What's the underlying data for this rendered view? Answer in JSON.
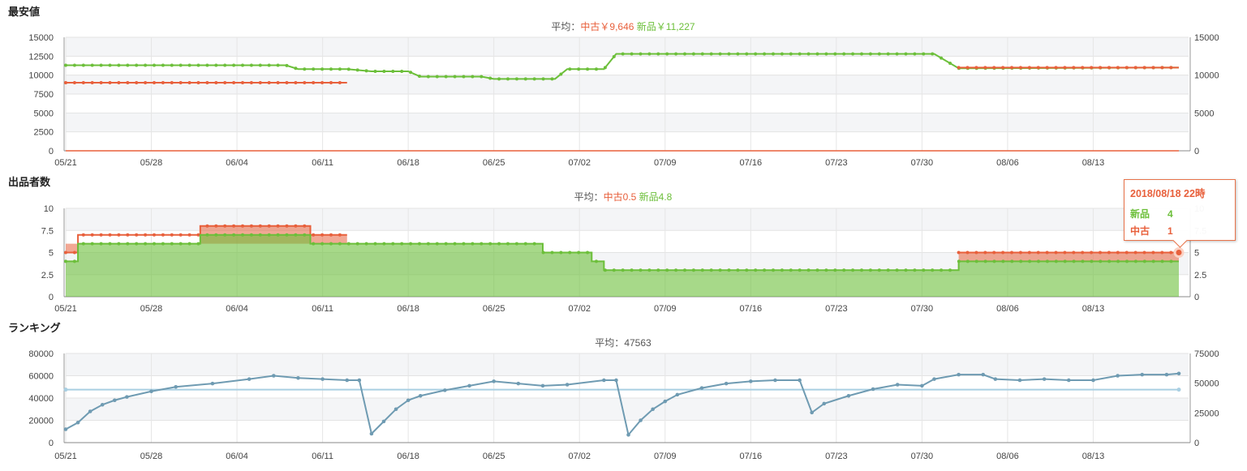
{
  "colors": {
    "used": "#e8603c",
    "new": "#6cbf3a",
    "rank": "#6f9bb2",
    "avg_line": "#a9cfe2"
  },
  "date_ticks": [
    "05/21",
    "05/28",
    "06/04",
    "06/11",
    "06/18",
    "06/25",
    "07/02",
    "07/09",
    "07/16",
    "07/23",
    "07/30",
    "08/06",
    "08/13"
  ],
  "chart_data": [
    {
      "type": "line",
      "title": "最安値",
      "subtitle_prefix": "平均：",
      "subtitle_used": "中古￥9,646",
      "subtitle_new": "新品￥11,227",
      "y_ticks": [
        "15000",
        "12500",
        "10000",
        "7500",
        "5000",
        "2500",
        "0"
      ],
      "y_ticks_right": [
        "15000",
        "10000",
        "5000",
        "0"
      ],
      "ylim": [
        0,
        15000
      ],
      "series": [
        {
          "name": "新品",
          "step": false,
          "points": [
            [
              "05/21",
              11300
            ],
            [
              "06/08",
              11300
            ],
            [
              "06/09",
              10800
            ],
            [
              "06/13",
              10800
            ],
            [
              "06/15",
              10500
            ],
            [
              "06/18",
              10500
            ],
            [
              "06/19",
              9800
            ],
            [
              "06/24",
              9800
            ],
            [
              "06/25",
              9500
            ],
            [
              "06/30",
              9500
            ],
            [
              "07/01",
              10800
            ],
            [
              "07/04",
              10800
            ],
            [
              "07/05",
              12800
            ],
            [
              "07/31",
              12800
            ],
            [
              "08/02",
              10900
            ],
            [
              "08/20",
              11000
            ]
          ]
        },
        {
          "name": "中古",
          "step": false,
          "segments": [
            [
              [
                "05/21",
                9000
              ],
              [
                "06/13",
                9000
              ]
            ],
            [
              [
                "08/02",
                11000
              ],
              [
                "08/20",
                11000
              ]
            ]
          ]
        }
      ]
    },
    {
      "type": "area",
      "title": "出品者数",
      "subtitle_prefix": "平均：",
      "subtitle_used": "中古0.5",
      "subtitle_new": "新品4.8",
      "y_ticks": [
        "10",
        "7.5",
        "5",
        "2.5",
        "0"
      ],
      "y_ticks_right": [
        "10",
        "7.5",
        "5",
        "2.5",
        "0"
      ],
      "ylim": [
        0,
        10
      ],
      "series": [
        {
          "name": "新品",
          "step": true,
          "points": [
            [
              "05/21",
              4
            ],
            [
              "05/22",
              6
            ],
            [
              "06/01",
              7
            ],
            [
              "06/10",
              6
            ],
            [
              "06/15",
              6
            ],
            [
              "06/29",
              5
            ],
            [
              "07/03",
              4
            ],
            [
              "07/04",
              3
            ],
            [
              "07/31",
              3
            ],
            [
              "08/02",
              4
            ],
            [
              "08/20",
              4
            ]
          ]
        },
        {
          "name": "中古",
          "step": true,
          "segments": [
            [
              [
                "05/21",
                1
              ],
              [
                "05/22",
                1
              ],
              [
                "06/01",
                1
              ],
              [
                "06/10",
                1
              ],
              [
                "06/13",
                1
              ]
            ],
            [
              [
                "08/02",
                1
              ],
              [
                "08/20",
                1
              ]
            ]
          ]
        }
      ]
    },
    {
      "type": "line",
      "title": "ランキング",
      "subtitle_prefix": "平均：",
      "subtitle_value": "47563",
      "y_ticks": [
        "80000",
        "60000",
        "40000",
        "20000",
        "0"
      ],
      "y_ticks_right": [
        "75000",
        "50000",
        "25000",
        "0"
      ],
      "ylim": [
        0,
        80000
      ],
      "average": 47563,
      "series": [
        {
          "name": "",
          "points": [
            [
              "05/21",
              12000
            ],
            [
              "05/22",
              18000
            ],
            [
              "05/23",
              28000
            ],
            [
              "05/24",
              34000
            ],
            [
              "05/25",
              38000
            ],
            [
              "05/26",
              41000
            ],
            [
              "05/28",
              46000
            ],
            [
              "05/30",
              50000
            ],
            [
              "06/02",
              53000
            ],
            [
              "06/05",
              57000
            ],
            [
              "06/07",
              60000
            ],
            [
              "06/09",
              58000
            ],
            [
              "06/11",
              57000
            ],
            [
              "06/13",
              56000
            ],
            [
              "06/14",
              56000
            ],
            [
              "06/15",
              8000
            ],
            [
              "06/16",
              19000
            ],
            [
              "06/17",
              30000
            ],
            [
              "06/18",
              38000
            ],
            [
              "06/19",
              42000
            ],
            [
              "06/21",
              47000
            ],
            [
              "06/23",
              51000
            ],
            [
              "06/25",
              55000
            ],
            [
              "06/27",
              53000
            ],
            [
              "06/29",
              51000
            ],
            [
              "07/01",
              52000
            ],
            [
              "07/04",
              56000
            ],
            [
              "07/05",
              56000
            ],
            [
              "07/06",
              7000
            ],
            [
              "07/07",
              20000
            ],
            [
              "07/08",
              30000
            ],
            [
              "07/09",
              37000
            ],
            [
              "07/10",
              43000
            ],
            [
              "07/12",
              49000
            ],
            [
              "07/14",
              53000
            ],
            [
              "07/16",
              55000
            ],
            [
              "07/18",
              56000
            ],
            [
              "07/20",
              56000
            ],
            [
              "07/21",
              27000
            ],
            [
              "07/22",
              35000
            ],
            [
              "07/24",
              42000
            ],
            [
              "07/26",
              48000
            ],
            [
              "07/28",
              52000
            ],
            [
              "07/30",
              51000
            ],
            [
              "07/31",
              57000
            ],
            [
              "08/02",
              61000
            ],
            [
              "08/04",
              61000
            ],
            [
              "08/05",
              57000
            ],
            [
              "08/07",
              56000
            ],
            [
              "08/09",
              57000
            ],
            [
              "08/11",
              56000
            ],
            [
              "08/13",
              56000
            ],
            [
              "08/15",
              60000
            ],
            [
              "08/17",
              61000
            ],
            [
              "08/19",
              61000
            ],
            [
              "08/20",
              62000
            ]
          ]
        }
      ]
    }
  ],
  "tooltip": {
    "title": "2018/08/18 22時",
    "new_label": "新品",
    "new_value": "4",
    "used_label": "中古",
    "used_value": "1"
  }
}
